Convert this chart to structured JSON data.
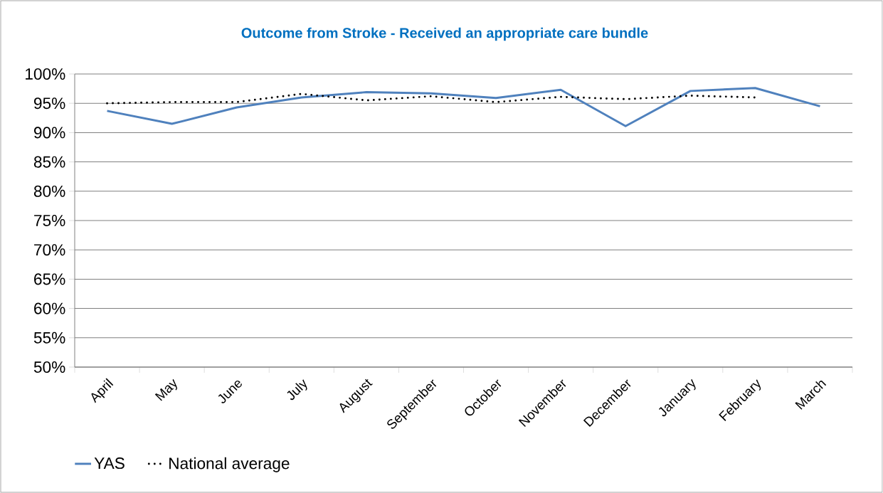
{
  "chart_data": {
    "type": "line",
    "title": "Outcome from Stroke - Received an appropriate care bundle",
    "categories": [
      "April",
      "May",
      "June",
      "July",
      "August",
      "September",
      "October",
      "November",
      "December",
      "January",
      "February",
      "March"
    ],
    "series": [
      {
        "name": "YAS",
        "color": "#4f81bd",
        "line_style": "solid",
        "values": [
          93.7,
          91.5,
          94.3,
          96.0,
          96.9,
          96.7,
          95.9,
          97.3,
          91.1,
          97.1,
          97.6,
          94.5
        ]
      },
      {
        "name": "National average",
        "color": "#000000",
        "line_style": "dotted",
        "values": [
          95.0,
          95.2,
          95.2,
          96.6,
          95.5,
          96.2,
          95.2,
          96.1,
          95.7,
          96.3,
          96.0,
          null
        ]
      }
    ],
    "ylim": [
      50,
      100
    ],
    "yticks": [
      {
        "value": 50,
        "label": "50%"
      },
      {
        "value": 55,
        "label": "55%"
      },
      {
        "value": 60,
        "label": "60%"
      },
      {
        "value": 65,
        "label": "65%"
      },
      {
        "value": 70,
        "label": "70%"
      },
      {
        "value": 75,
        "label": "75%"
      },
      {
        "value": 80,
        "label": "80%"
      },
      {
        "value": 85,
        "label": "85%"
      },
      {
        "value": 90,
        "label": "90%"
      },
      {
        "value": 95,
        "label": "95%"
      },
      {
        "value": 100,
        "label": "100%"
      }
    ],
    "grid": "y",
    "legend": "bottom left",
    "marker": "none"
  }
}
